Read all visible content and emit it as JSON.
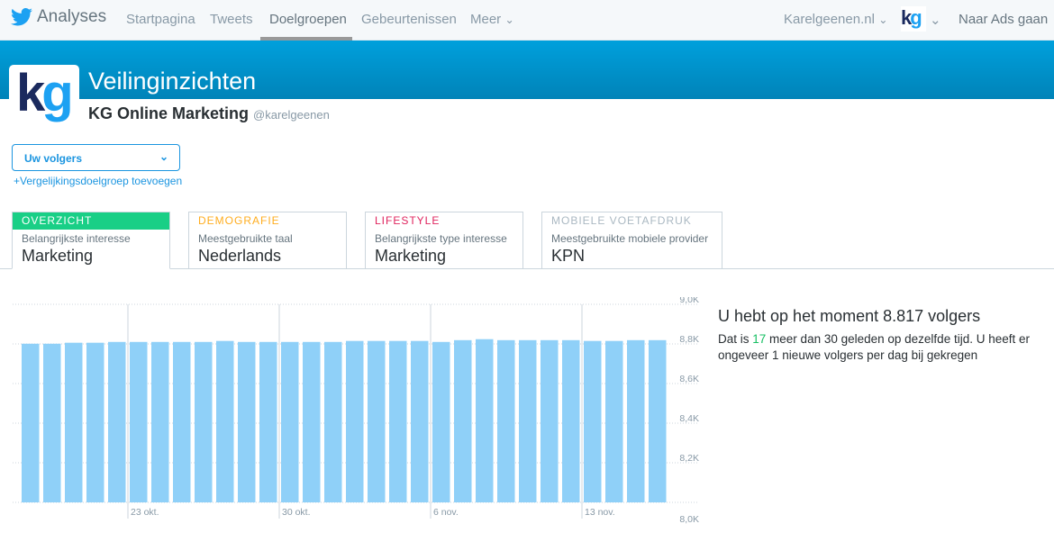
{
  "nav": {
    "brand": "Analyses",
    "items": [
      "Startpagina",
      "Tweets",
      "Doelgroepen",
      "Gebeurtenissen",
      "Meer"
    ],
    "active": "Doelgroepen",
    "account_menu": "Karelgeenen.nl",
    "ads_link": "Naar Ads gaan"
  },
  "header": {
    "title": "Veilinginzichten",
    "account_name": "KG Online Marketing",
    "handle": "@karelgeenen",
    "logo_text": "kg"
  },
  "audience": {
    "selected": "Uw volgers",
    "add_comparison": "+Vergelijkingsdoelgroep toevoegen"
  },
  "tabs": [
    {
      "heading": "OVERZICHT",
      "sub": "Belangrijkste interesse",
      "value": "Marketing",
      "color": "#19cf86"
    },
    {
      "heading": "DEMOGRAFIE",
      "sub": "Meestgebruikte taal",
      "value": "Nederlands",
      "color": "#ffad1f"
    },
    {
      "heading": "LIFESTYLE",
      "sub": "Belangrijkste type interesse",
      "value": "Marketing",
      "color": "#e0245e"
    },
    {
      "heading": "MOBIELE VOETAFDRUK",
      "sub": "Meestgebruikte mobiele provider",
      "value": "KPN",
      "color": "#aab8c2"
    }
  ],
  "summary": {
    "title": "U hebt op het moment 8.817 volgers",
    "pre": "Dat is ",
    "delta": "17",
    "post": " meer dan 30 geleden op dezelfde tijd. U heeft er ongeveer 1 nieuwe volgers per dag bij gekregen"
  },
  "chart_data": {
    "type": "bar",
    "bar_color": "#8fd0f8",
    "ylim": [
      8000,
      9000
    ],
    "yticks": [
      "9,0K",
      "8,8K",
      "8,6K",
      "8,4K",
      "8,2K",
      "8,0K"
    ],
    "grid": true,
    "xlabels": [
      {
        "label": "23 okt.",
        "before_bar": 5
      },
      {
        "label": "30 okt.",
        "before_bar": 12
      },
      {
        "label": "6 nov.",
        "before_bar": 19
      },
      {
        "label": "13 nov.",
        "before_bar": 26
      }
    ],
    "values": [
      8801,
      8801,
      8806,
      8806,
      8810,
      8810,
      8810,
      8810,
      8810,
      8815,
      8810,
      8810,
      8810,
      8810,
      8810,
      8815,
      8815,
      8815,
      8815,
      8810,
      8819,
      8824,
      8819,
      8819,
      8819,
      8819,
      8815,
      8815,
      8819,
      8819
    ]
  }
}
